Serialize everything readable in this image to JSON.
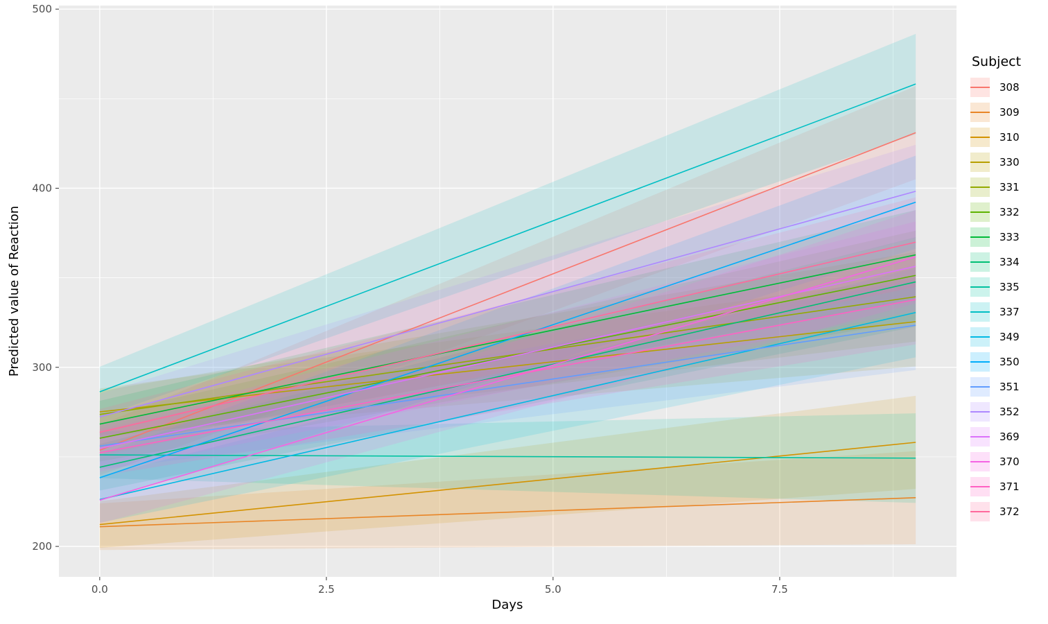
{
  "chart_data": {
    "type": "line",
    "title": "",
    "xlabel": "Days",
    "ylabel": "Predicted value of Reaction",
    "legend_title": "Subject",
    "legend_position": "right",
    "grid": true,
    "panel_bg": "#EBEBEB",
    "grid_color": "#FFFFFF",
    "axis_text_color": "#4D4D4D",
    "axis_title_color": "#000000",
    "x_domain": [
      -0.45,
      9.45
    ],
    "y_domain": [
      183,
      502
    ],
    "x_data_range": [
      0,
      9
    ],
    "x_ticks": [
      0.0,
      2.5,
      5.0,
      7.5
    ],
    "x_tick_labels": [
      "0.0",
      "2.5",
      "5.0",
      "7.5"
    ],
    "x_minor": [
      1.25,
      3.75,
      6.25,
      8.75
    ],
    "y_ticks": [
      200,
      300,
      400,
      500
    ],
    "y_tick_labels": [
      "200",
      "300",
      "400",
      "500"
    ],
    "y_minor": [
      250,
      350,
      450
    ],
    "ribbon_opacity": 0.15,
    "legend_key_opacity": 0.2,
    "line_width": 1.6,
    "series": [
      {
        "name": "308",
        "color": "#F8766D",
        "intercept": 253.7,
        "slope": 19.7,
        "ci_start": 14,
        "ci_end": 26
      },
      {
        "name": "309",
        "color": "#E88526",
        "intercept": 211.0,
        "slope": 1.8,
        "ci_start": 13,
        "ci_end": 26
      },
      {
        "name": "310",
        "color": "#D39200",
        "intercept": 212.2,
        "slope": 5.1,
        "ci_start": 13,
        "ci_end": 26
      },
      {
        "name": "330",
        "color": "#B79F00",
        "intercept": 275.1,
        "slope": 5.6,
        "ci_start": 13,
        "ci_end": 25
      },
      {
        "name": "331",
        "color": "#93AA00",
        "intercept": 273.7,
        "slope": 7.3,
        "ci_start": 13,
        "ci_end": 25
      },
      {
        "name": "332",
        "color": "#5EB300",
        "intercept": 260.4,
        "slope": 10.1,
        "ci_start": 13,
        "ci_end": 25
      },
      {
        "name": "333",
        "color": "#00BA38",
        "intercept": 268.3,
        "slope": 10.5,
        "ci_start": 13,
        "ci_end": 25
      },
      {
        "name": "334",
        "color": "#00BF74",
        "intercept": 244.2,
        "slope": 11.5,
        "ci_start": 13,
        "ci_end": 25
      },
      {
        "name": "335",
        "color": "#00C19F",
        "intercept": 251.1,
        "slope": -0.2,
        "ci_start": 13,
        "ci_end": 25
      },
      {
        "name": "337",
        "color": "#00BFC4",
        "intercept": 286.3,
        "slope": 19.1,
        "ci_start": 14,
        "ci_end": 28
      },
      {
        "name": "349",
        "color": "#00B9E3",
        "intercept": 226.2,
        "slope": 11.6,
        "ci_start": 13,
        "ci_end": 25
      },
      {
        "name": "350",
        "color": "#00ADFA",
        "intercept": 238.3,
        "slope": 17.1,
        "ci_start": 13,
        "ci_end": 26
      },
      {
        "name": "351",
        "color": "#619CFF",
        "intercept": 256.0,
        "slope": 7.5,
        "ci_start": 13,
        "ci_end": 25
      },
      {
        "name": "352",
        "color": "#AE87FF",
        "intercept": 272.3,
        "slope": 14.0,
        "ci_start": 13,
        "ci_end": 26
      },
      {
        "name": "369",
        "color": "#DB72FB",
        "intercept": 254.7,
        "slope": 11.3,
        "ci_start": 13,
        "ci_end": 25
      },
      {
        "name": "370",
        "color": "#F564E3",
        "intercept": 225.8,
        "slope": 15.1,
        "ci_start": 13,
        "ci_end": 26
      },
      {
        "name": "371",
        "color": "#FF61C3",
        "intercept": 252.3,
        "slope": 9.5,
        "ci_start": 13,
        "ci_end": 25
      },
      {
        "name": "372",
        "color": "#FF699C",
        "intercept": 263.7,
        "slope": 11.8,
        "ci_start": 13,
        "ci_end": 25
      }
    ]
  }
}
